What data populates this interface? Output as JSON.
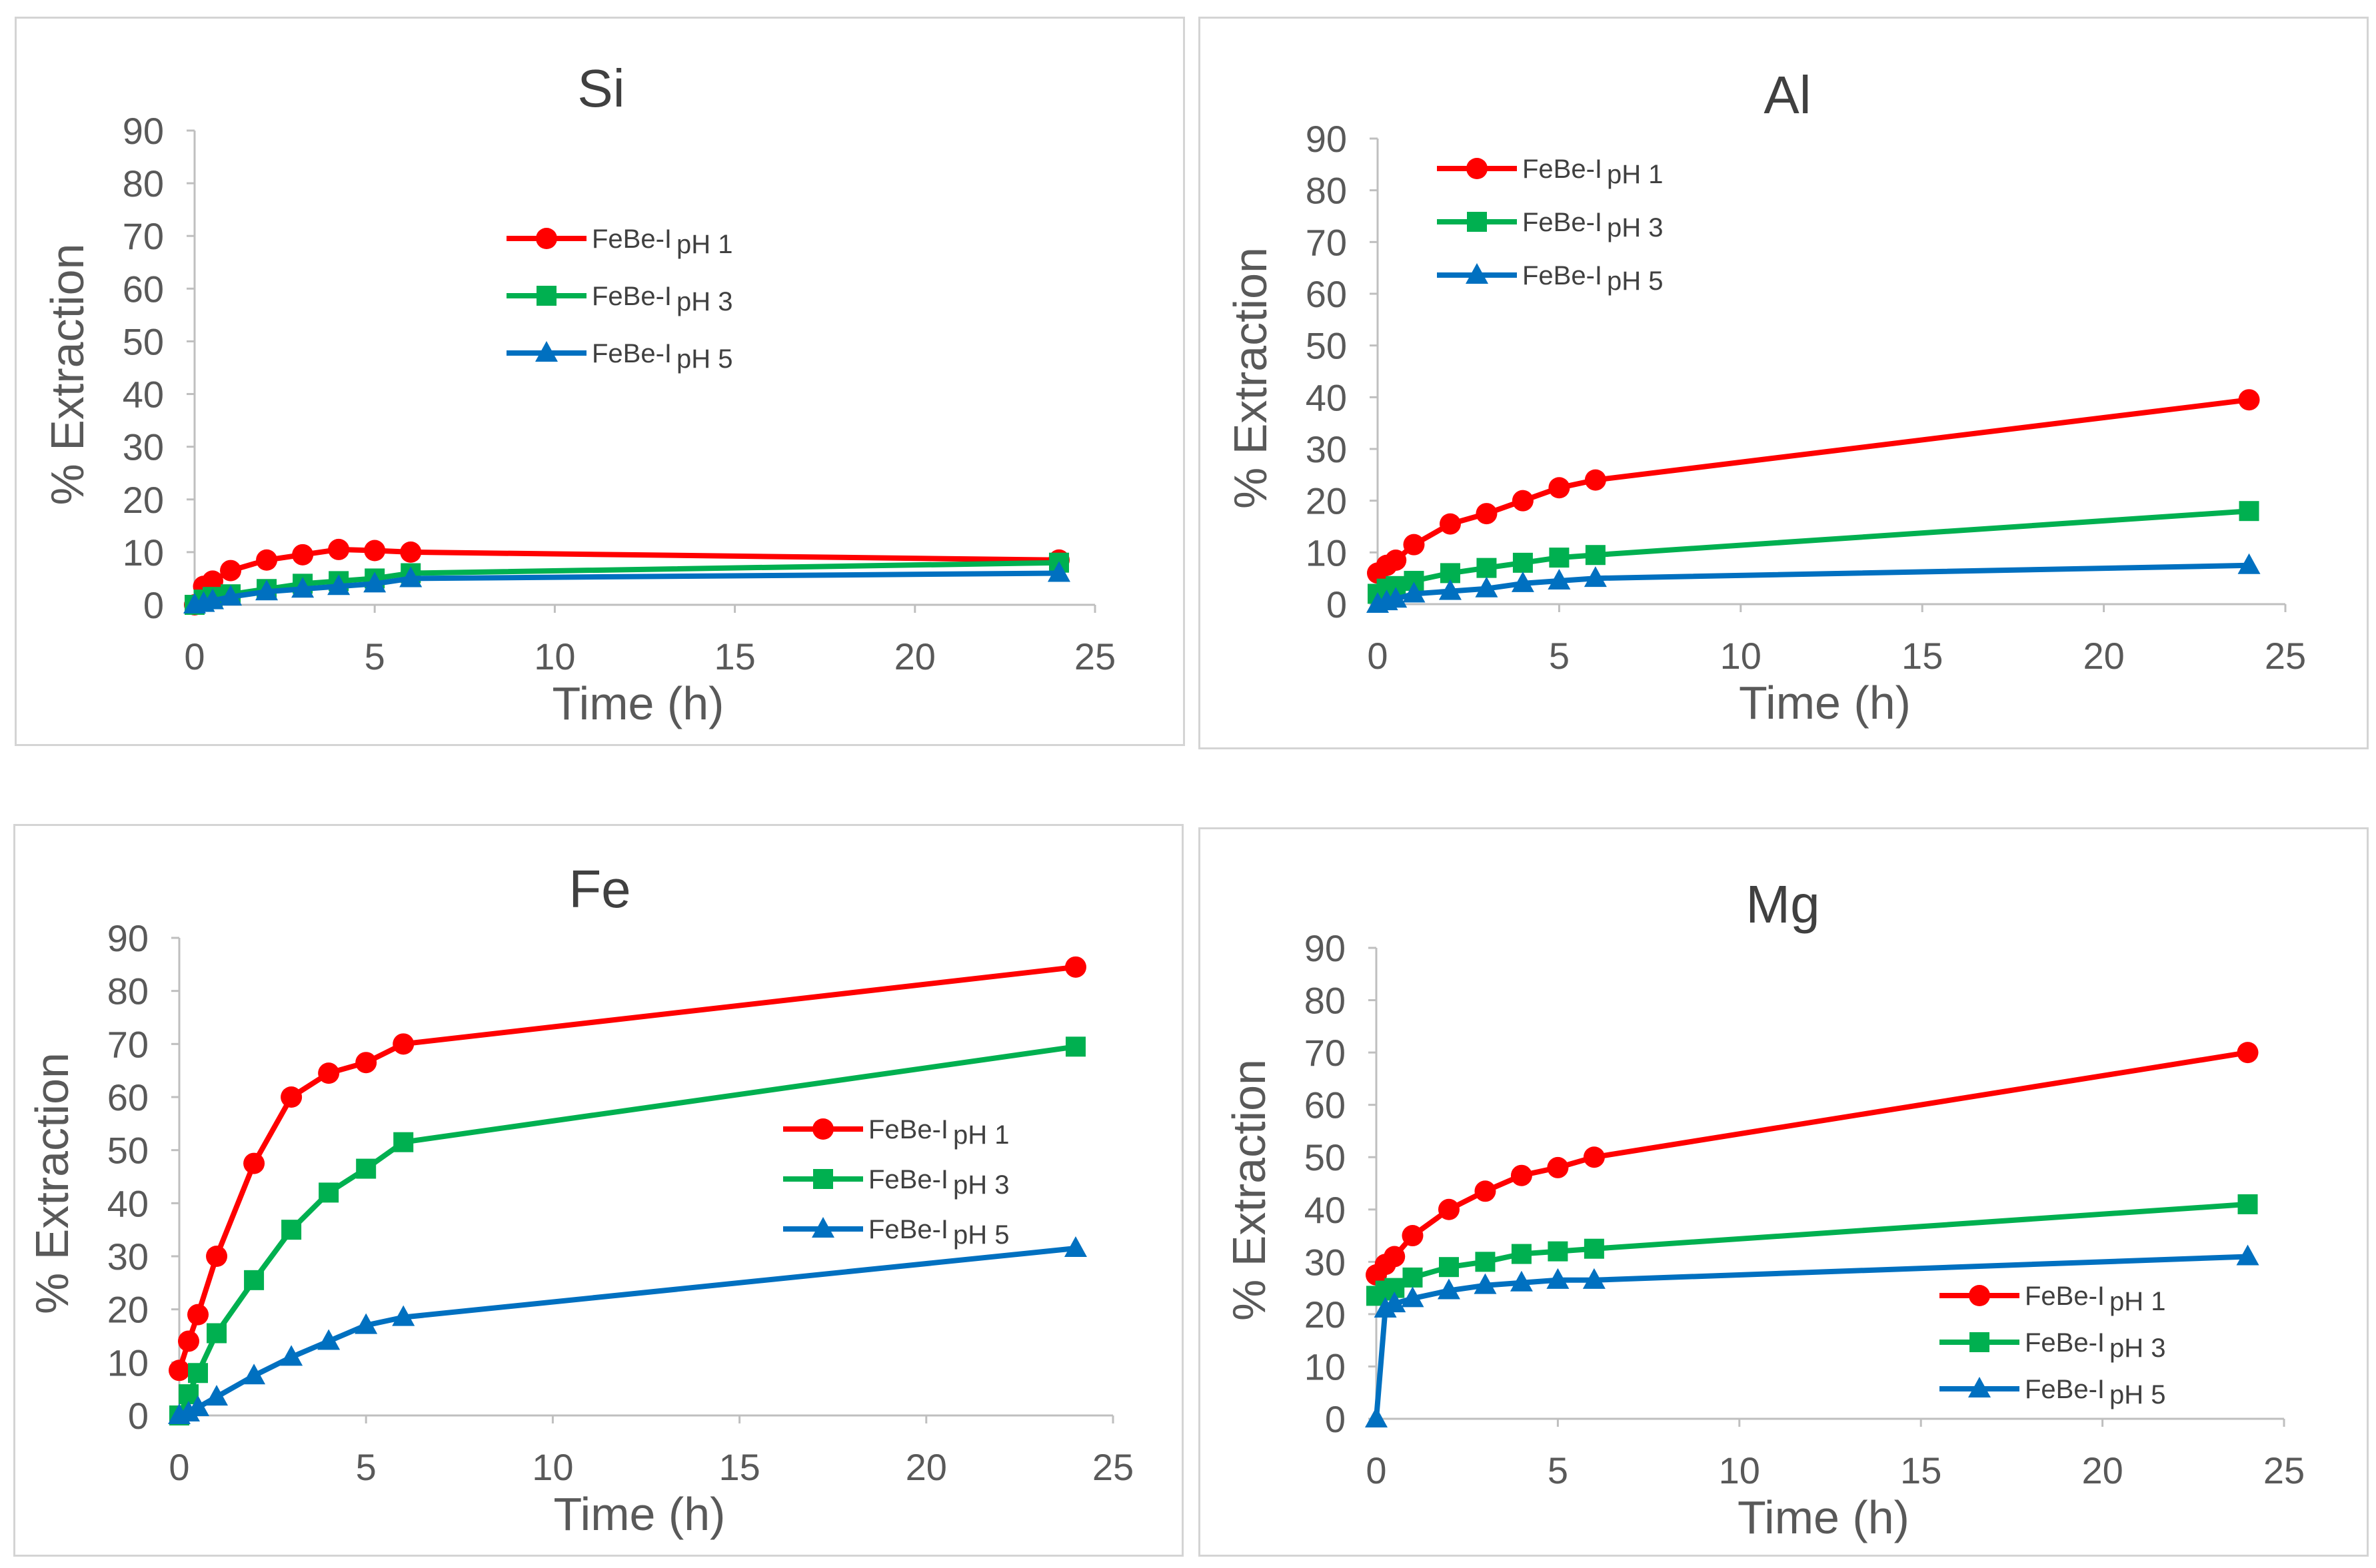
{
  "chart_data": [
    {
      "type": "line",
      "title": "Si",
      "xlabel": "Time (h)",
      "ylabel": "% Extraction",
      "xlim": [
        0,
        25
      ],
      "ylim": [
        0,
        90
      ],
      "xticks": [
        "0",
        "5",
        "10",
        "15",
        "20",
        "25"
      ],
      "yticks": [
        "0",
        "10",
        "20",
        "30",
        "40",
        "50",
        "60",
        "70",
        "80",
        "90"
      ],
      "legend_position": "upper-center",
      "series": [
        {
          "name": "FeBe-I",
          "ph": "pH 1",
          "color": "#ff0000",
          "marker": "circle",
          "x": [
            0,
            0.25,
            0.5,
            1,
            2,
            3,
            4,
            5,
            6,
            24
          ],
          "y": [
            0,
            3.5,
            4.5,
            6.5,
            8.5,
            9.5,
            10.5,
            10.3,
            10,
            8.5
          ]
        },
        {
          "name": "FeBe-I",
          "ph": "pH 3",
          "color": "#00b050",
          "marker": "square",
          "x": [
            0,
            0.25,
            0.5,
            1,
            2,
            3,
            4,
            5,
            6,
            24
          ],
          "y": [
            0,
            1,
            1.5,
            2,
            3,
            4,
            4.5,
            5,
            6,
            8
          ]
        },
        {
          "name": "FeBe-I",
          "ph": "pH 5",
          "color": "#0070c0",
          "marker": "triangle",
          "x": [
            0,
            0.25,
            0.5,
            1,
            2,
            3,
            4,
            5,
            6,
            24
          ],
          "y": [
            0,
            0.3,
            0.8,
            1.5,
            2.5,
            3,
            3.5,
            4,
            5,
            6
          ]
        }
      ]
    },
    {
      "type": "line",
      "title": "Al",
      "xlabel": "Time (h)",
      "ylabel": "% Extraction",
      "xlim": [
        0,
        25
      ],
      "ylim": [
        0,
        90
      ],
      "xticks": [
        "0",
        "5",
        "10",
        "15",
        "20",
        "25"
      ],
      "yticks": [
        "0",
        "10",
        "20",
        "30",
        "40",
        "50",
        "60",
        "70",
        "80",
        "90"
      ],
      "legend_position": "upper-left",
      "series": [
        {
          "name": "FeBe-I",
          "ph": "pH 1",
          "color": "#ff0000",
          "marker": "circle",
          "x": [
            0,
            0.25,
            0.5,
            1,
            2,
            3,
            4,
            5,
            6,
            24
          ],
          "y": [
            6,
            7.5,
            8.5,
            11.5,
            15.5,
            17.5,
            20,
            22.5,
            24,
            39.5
          ]
        },
        {
          "name": "FeBe-I",
          "ph": "pH 3",
          "color": "#00b050",
          "marker": "square",
          "x": [
            0,
            0.25,
            0.5,
            1,
            2,
            3,
            4,
            5,
            6,
            24
          ],
          "y": [
            2,
            3,
            3.5,
            4.5,
            6,
            7,
            8,
            9,
            9.5,
            18
          ]
        },
        {
          "name": "FeBe-I",
          "ph": "pH 5",
          "color": "#0070c0",
          "marker": "triangle",
          "x": [
            0,
            0.25,
            0.5,
            1,
            2,
            3,
            4,
            5,
            6,
            24
          ],
          "y": [
            0,
            0.5,
            1,
            2,
            2.5,
            3,
            4,
            4.5,
            5,
            7.5
          ]
        }
      ]
    },
    {
      "type": "line",
      "title": "Fe",
      "xlabel": "Time (h)",
      "ylabel": "% Extraction",
      "xlim": [
        0,
        25
      ],
      "ylim": [
        0,
        90
      ],
      "xticks": [
        "0",
        "5",
        "10",
        "15",
        "20",
        "25"
      ],
      "yticks": [
        "0",
        "10",
        "20",
        "30",
        "40",
        "50",
        "60",
        "70",
        "80",
        "90"
      ],
      "legend_position": "center-right",
      "series": [
        {
          "name": "FeBe-I",
          "ph": "pH 1",
          "color": "#ff0000",
          "marker": "circle",
          "x": [
            0,
            0.25,
            0.5,
            1,
            2,
            3,
            4,
            5,
            6,
            24
          ],
          "y": [
            8.5,
            14,
            19,
            30,
            47.5,
            60,
            64.5,
            66.5,
            70,
            84.5
          ]
        },
        {
          "name": "FeBe-I",
          "ph": "pH 3",
          "color": "#00b050",
          "marker": "square",
          "x": [
            0,
            0.25,
            0.5,
            1,
            2,
            3,
            4,
            5,
            6,
            24
          ],
          "y": [
            0,
            4,
            8,
            15.5,
            25.5,
            35,
            42,
            46.5,
            51.5,
            69.5
          ]
        },
        {
          "name": "FeBe-I",
          "ph": "pH 5",
          "color": "#0070c0",
          "marker": "triangle",
          "x": [
            0,
            0.25,
            0.5,
            1,
            2,
            3,
            4,
            5,
            6,
            24
          ],
          "y": [
            0,
            0.5,
            1.5,
            3.5,
            7.5,
            11,
            14,
            17,
            18.5,
            31.5
          ]
        }
      ]
    },
    {
      "type": "line",
      "title": "Mg",
      "xlabel": "Time (h)",
      "ylabel": "% Extraction",
      "xlim": [
        0,
        25
      ],
      "ylim": [
        0,
        90
      ],
      "xticks": [
        "0",
        "5",
        "10",
        "15",
        "20",
        "25"
      ],
      "yticks": [
        "0",
        "10",
        "20",
        "30",
        "40",
        "50",
        "60",
        "70",
        "80",
        "90"
      ],
      "legend_position": "lower-right",
      "series": [
        {
          "name": "FeBe-I",
          "ph": "pH 1",
          "color": "#ff0000",
          "marker": "circle",
          "x": [
            0,
            0.25,
            0.5,
            1,
            2,
            3,
            4,
            5,
            6,
            24
          ],
          "y": [
            27.5,
            29.5,
            31,
            35,
            40,
            43.5,
            46.5,
            48,
            50,
            70
          ]
        },
        {
          "name": "FeBe-I",
          "ph": "pH 3",
          "color": "#00b050",
          "marker": "square",
          "x": [
            0,
            0.25,
            0.5,
            1,
            2,
            3,
            4,
            5,
            6,
            24
          ],
          "y": [
            23.5,
            24.5,
            25,
            27,
            29,
            30,
            31.5,
            32,
            32.5,
            41
          ]
        },
        {
          "name": "FeBe-I",
          "ph": "pH 5",
          "color": "#0070c0",
          "marker": "triangle",
          "x": [
            0,
            0.25,
            0.5,
            1,
            2,
            3,
            4,
            5,
            6,
            24
          ],
          "y": [
            0,
            21,
            22,
            23,
            24.5,
            25.5,
            26,
            26.5,
            26.5,
            31
          ]
        }
      ]
    }
  ]
}
